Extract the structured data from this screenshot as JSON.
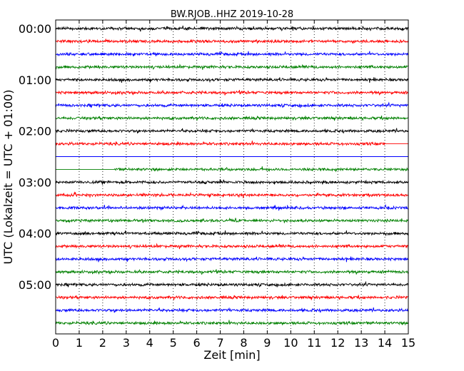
{
  "chart_data": {
    "type": "line",
    "title": "BW.RJOB..HHZ 2019-10-28",
    "xlabel": "Zeit  [min]",
    "ylabel": "UTC (Lokalzeit = UTC + 01:00)",
    "xlim": [
      0,
      15
    ],
    "x_ticks": [
      "0",
      "1",
      "2",
      "3",
      "4",
      "5",
      "6",
      "7",
      "8",
      "9",
      "10",
      "11",
      "12",
      "13",
      "14",
      "15"
    ],
    "y_tick_labels": [
      "00:00",
      "01:00",
      "02:00",
      "03:00",
      "04:00",
      "05:00"
    ],
    "grid": "vertical dotted",
    "trace_interval_minutes": 15,
    "colors": [
      "#000000",
      "#ff0000",
      "#0000ff",
      "#008000"
    ],
    "traces": [
      {
        "start": "00:00",
        "color": "#000000",
        "signal": [
          0,
          15
        ]
      },
      {
        "start": "00:15",
        "color": "#ff0000",
        "signal": [
          0,
          15
        ]
      },
      {
        "start": "00:30",
        "color": "#0000ff",
        "signal": [
          0,
          15
        ]
      },
      {
        "start": "00:45",
        "color": "#008000",
        "signal": [
          0,
          15
        ]
      },
      {
        "start": "01:00",
        "color": "#000000",
        "signal": [
          0,
          15
        ]
      },
      {
        "start": "01:15",
        "color": "#ff0000",
        "signal": [
          0,
          15
        ]
      },
      {
        "start": "01:30",
        "color": "#0000ff",
        "signal": [
          0,
          15
        ]
      },
      {
        "start": "01:45",
        "color": "#008000",
        "signal": [
          0,
          15
        ]
      },
      {
        "start": "02:00",
        "color": "#000000",
        "signal": [
          0,
          15
        ]
      },
      {
        "start": "02:15",
        "color": "#ff0000",
        "signal": [
          0,
          14
        ]
      },
      {
        "start": "02:30",
        "color": "#0000ff",
        "signal": null
      },
      {
        "start": "02:45",
        "color": "#008000",
        "signal": [
          2.5,
          15
        ]
      },
      {
        "start": "03:00",
        "color": "#000000",
        "signal": [
          0,
          15
        ]
      },
      {
        "start": "03:15",
        "color": "#ff0000",
        "signal": [
          0,
          15
        ]
      },
      {
        "start": "03:30",
        "color": "#0000ff",
        "signal": [
          0,
          15
        ]
      },
      {
        "start": "03:45",
        "color": "#008000",
        "signal": [
          0,
          15
        ]
      },
      {
        "start": "04:00",
        "color": "#000000",
        "signal": [
          0,
          15
        ]
      },
      {
        "start": "04:15",
        "color": "#ff0000",
        "signal": [
          0,
          15
        ]
      },
      {
        "start": "04:30",
        "color": "#0000ff",
        "signal": [
          0,
          15
        ]
      },
      {
        "start": "04:45",
        "color": "#008000",
        "signal": [
          0,
          15
        ]
      },
      {
        "start": "05:00",
        "color": "#000000",
        "signal": [
          0,
          15
        ]
      },
      {
        "start": "05:15",
        "color": "#ff0000",
        "signal": [
          0,
          15
        ]
      },
      {
        "start": "05:30",
        "color": "#0000ff",
        "signal": [
          0,
          15
        ]
      },
      {
        "start": "05:45",
        "color": "#008000",
        "signal": [
          0,
          15
        ]
      }
    ]
  }
}
